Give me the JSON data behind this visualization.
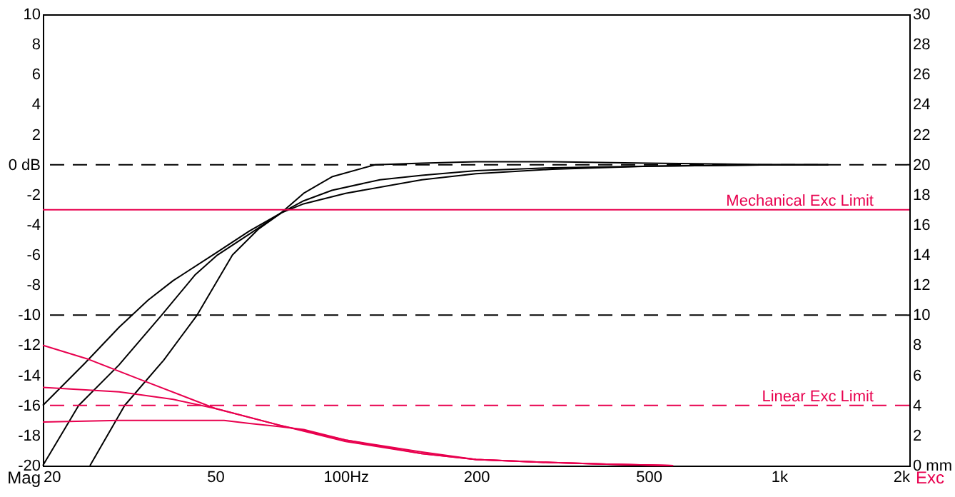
{
  "chart_data": {
    "type": "line",
    "ylabel": "Mag",
    "y2label": "Exc",
    "xlim": [
      20,
      2000
    ],
    "xticks": [
      20,
      50,
      {
        "value": 100,
        "label": "100Hz"
      },
      200,
      500,
      {
        "value": 1000,
        "label": "1k"
      },
      {
        "value": 2000,
        "label": "2k"
      }
    ],
    "ylim": [
      -20,
      10
    ],
    "yticks": [
      -20,
      -18,
      -16,
      -14,
      -12,
      -10,
      -8,
      -6,
      -4,
      -2,
      {
        "value": 0,
        "label": "0 dB"
      },
      2,
      4,
      6,
      8,
      10
    ],
    "y2lim": [
      0,
      30
    ],
    "y2ticks": [
      {
        "value": 0,
        "label": "0 mm"
      },
      2,
      4,
      6,
      8,
      10,
      12,
      14,
      16,
      18,
      20,
      22,
      24,
      26,
      28,
      30
    ],
    "log": "x",
    "grid": false,
    "series": [
      {
        "color": "#000000",
        "x": [
          20,
          25,
          30,
          35,
          40,
          50,
          60,
          71,
          80,
          100,
          150,
          200,
          300,
          500,
          1000,
          1300
        ],
        "values": [
          -16,
          -13.2,
          -10.8,
          -9.0,
          -7.7,
          -5.9,
          -4.4,
          -3.2,
          -2.6,
          -1.9,
          -1.0,
          -0.6,
          -0.3,
          -0.1,
          0,
          0
        ]
      },
      {
        "color": "#000000",
        "x": [
          20,
          24.2,
          30,
          37.6,
          45,
          50.6,
          60,
          71,
          80,
          93,
          120,
          150,
          200,
          300,
          500,
          1000,
          1300
        ],
        "values": [
          -20,
          -16,
          -13.3,
          -10,
          -7.3,
          -6,
          -4.6,
          -3.2,
          -2.4,
          -1.7,
          -1.0,
          -0.7,
          -0.4,
          -0.2,
          -0.1,
          0,
          0
        ]
      },
      {
        "color": "#000000",
        "x": [
          25.7,
          30.9,
          38,
          45.4,
          54.8,
          62.8,
          71,
          80,
          93,
          117,
          150,
          200,
          300,
          500,
          1000,
          1300
        ],
        "values": [
          -20,
          -16,
          -13,
          -10,
          -6,
          -4.3,
          -3.2,
          -1.9,
          -0.8,
          0,
          0.1,
          0.2,
          0.2,
          0.1,
          0,
          0
        ]
      },
      {
        "color": "#e8004e",
        "axis": "y2",
        "x": [
          20,
          25.3,
          33.7,
          50,
          70,
          100,
          150,
          200,
          300,
          400,
          570
        ],
        "values": [
          8.0,
          7.1,
          5.7,
          3.8,
          2.7,
          1.6,
          0.8,
          0.4,
          0.2,
          0.1,
          0
        ]
      },
      {
        "color": "#e8004e",
        "axis": "y2",
        "x": [
          20,
          30,
          40,
          50,
          70,
          100,
          150,
          200,
          300,
          400,
          570
        ],
        "values": [
          5.2,
          4.9,
          4.4,
          3.8,
          2.7,
          1.7,
          0.9,
          0.4,
          0.2,
          0.1,
          0
        ]
      },
      {
        "color": "#e8004e",
        "axis": "y2",
        "x": [
          20,
          30,
          40,
          52.4,
          60,
          70,
          80,
          100,
          150,
          200,
          300,
          400,
          570
        ],
        "values": [
          2.9,
          3.0,
          3.0,
          3.0,
          2.8,
          2.6,
          2.4,
          1.7,
          0.8,
          0.4,
          0.2,
          0.1,
          0
        ]
      }
    ],
    "ref_lines": [
      {
        "axis": "y",
        "value": 0,
        "label": null,
        "color": "#000000",
        "line_style": "dashed"
      },
      {
        "axis": "y",
        "value": -10,
        "label": null,
        "color": "#000000",
        "line_style": "dashed"
      },
      {
        "axis": "y2",
        "value": 17,
        "label": "Mechanical Exc Limit",
        "color": "#e8004e",
        "line_style": "solid"
      },
      {
        "axis": "y2",
        "value": 4,
        "label": "Linear Exc Limit",
        "color": "#e8004e",
        "line_style": "dashed"
      }
    ]
  }
}
